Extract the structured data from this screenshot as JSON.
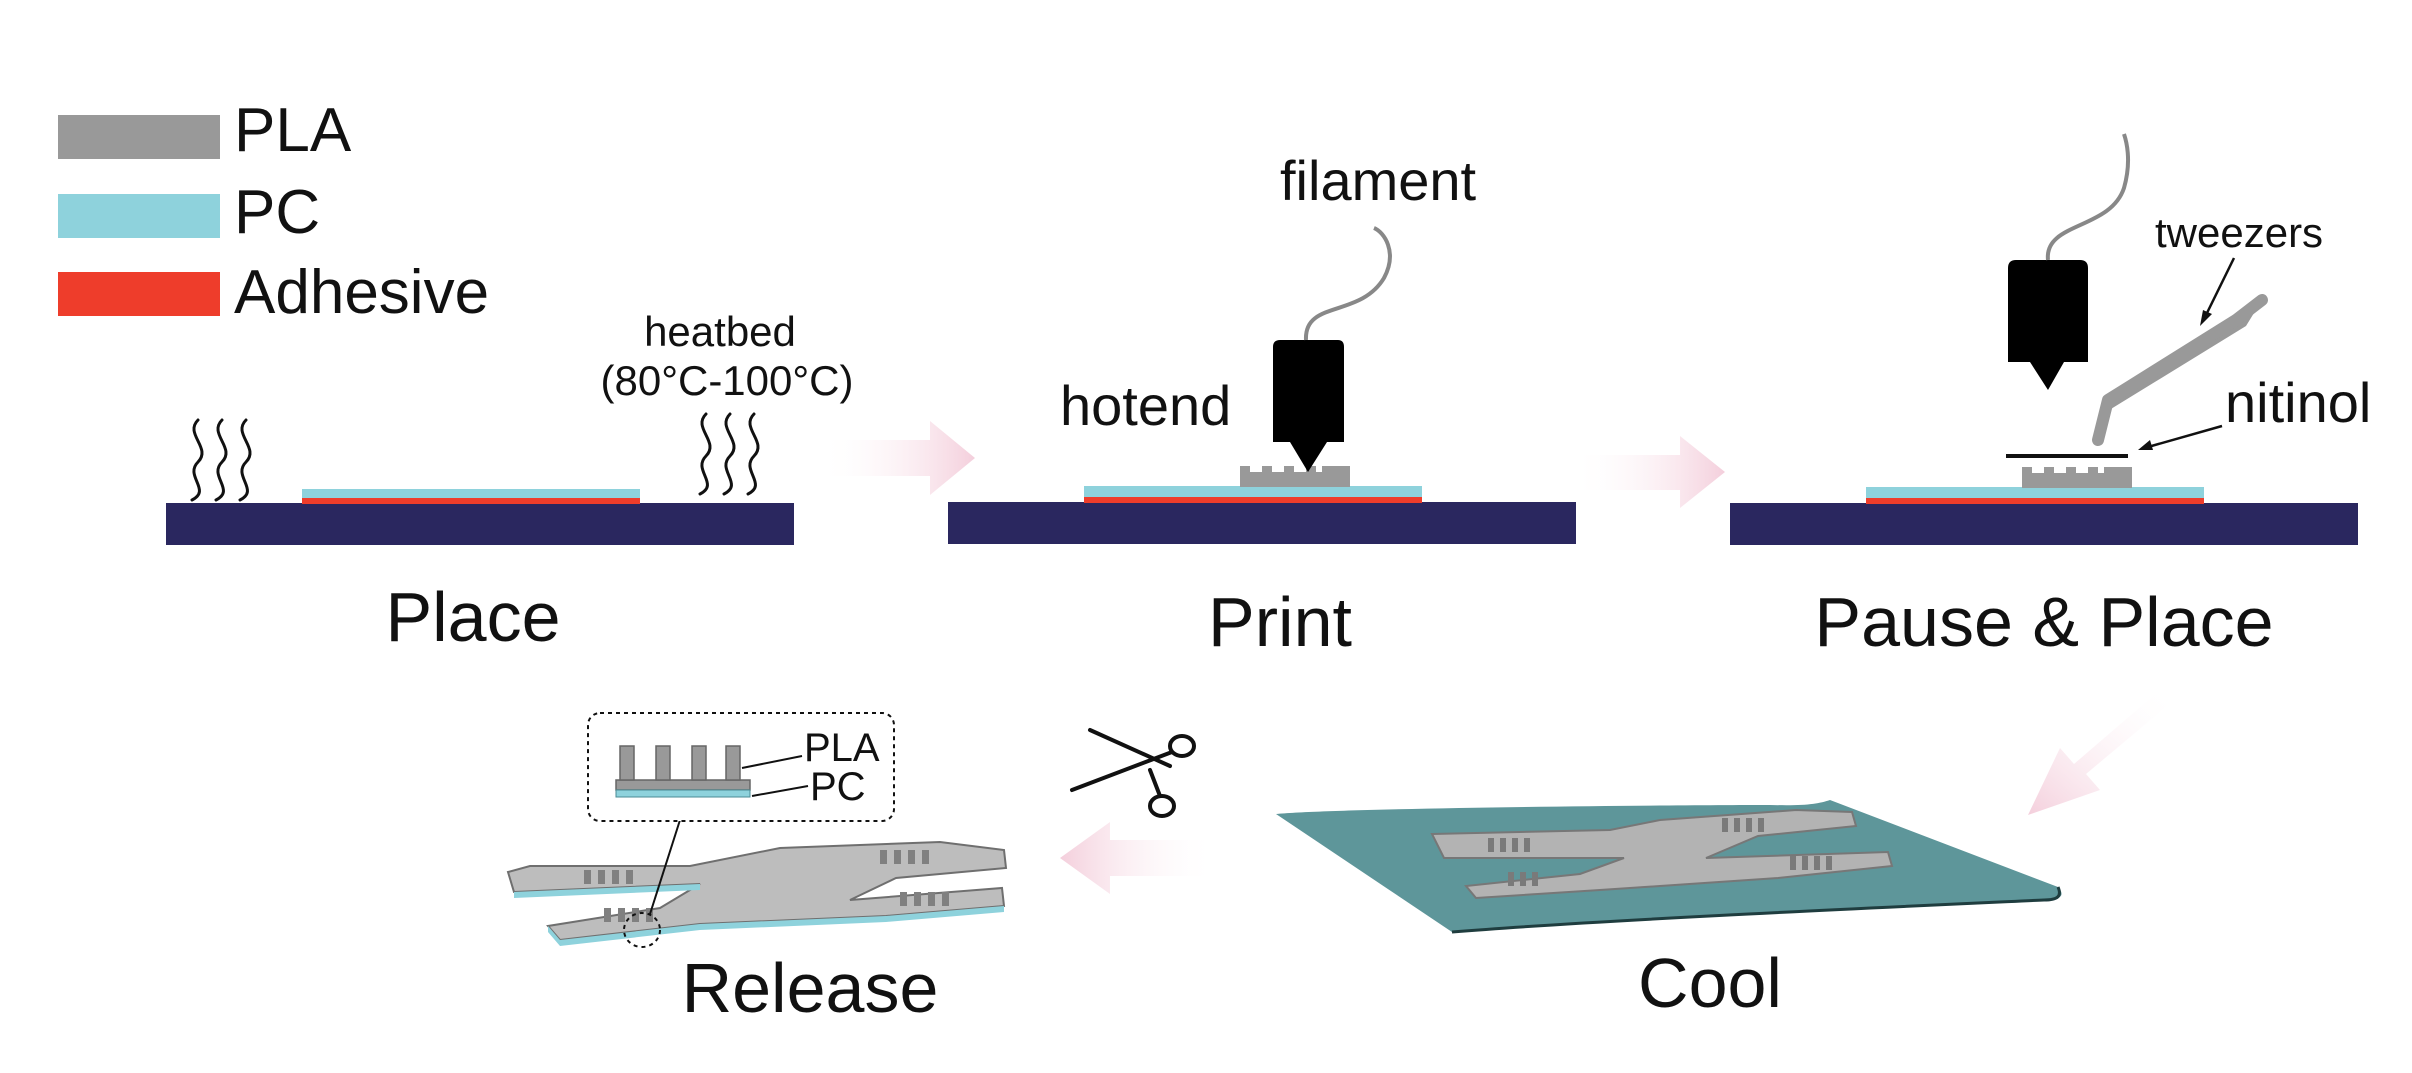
{
  "colors": {
    "pla": "#999999",
    "pc": "#8ed2dc",
    "adhesive": "#ee3d2b",
    "heatbed": "#2a275f",
    "hotend": "#000000",
    "cool_sheet": "#5e969a",
    "arrow": "#f6dbe5"
  },
  "legend": [
    {
      "label": "PLA",
      "color_key": "pla"
    },
    {
      "label": "PC",
      "color_key": "pc"
    },
    {
      "label": "Adhesive",
      "color_key": "adhesive"
    }
  ],
  "annotations": {
    "heatbed_line1": "heatbed",
    "heatbed_line2": "(80°C-100°C)",
    "filament": "filament",
    "hotend": "hotend",
    "tweezers": "tweezers",
    "nitinol": "nitinol"
  },
  "steps": [
    {
      "label": "Place"
    },
    {
      "label": "Print"
    },
    {
      "label": "Pause & Place"
    },
    {
      "label": "Cool"
    },
    {
      "label": "Release"
    }
  ],
  "inset": {
    "label_top": "PLA",
    "label_bottom": "PC"
  },
  "icons": [
    "heat-wave-icon",
    "arrow-right-icon",
    "arrow-down-left-icon",
    "arrow-left-icon",
    "scissors-icon",
    "hotend-icon",
    "tweezers-icon"
  ]
}
